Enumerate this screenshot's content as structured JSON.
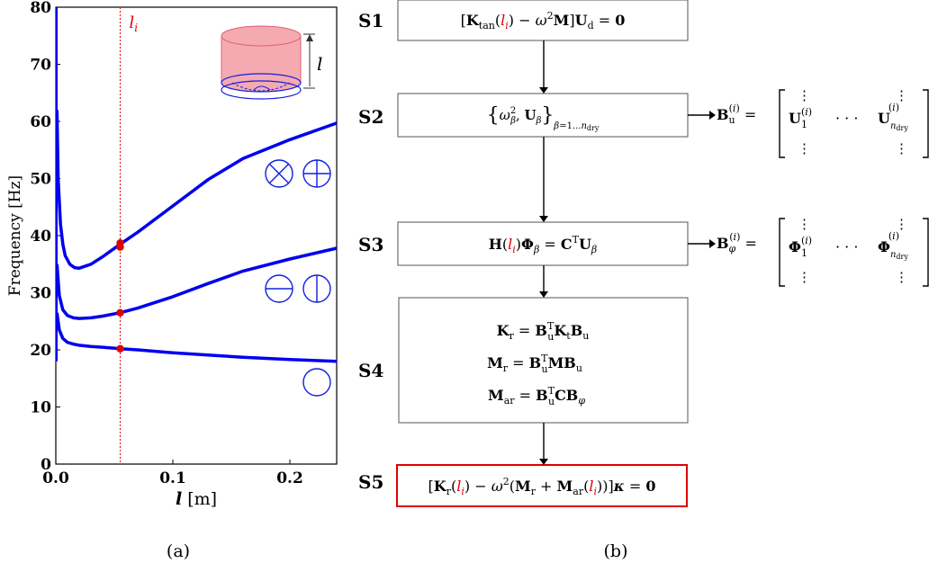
{
  "panel_a": {
    "caption": "(a)",
    "chart_data": {
      "type": "line",
      "ylabel": "Frequency [Hz]",
      "xlabel_var": "l",
      "xlabel_unit": "[m]",
      "xlim": [
        0,
        0.24
      ],
      "ylim": [
        0,
        80
      ],
      "xticks": [
        0.0,
        0.1,
        0.2
      ],
      "xtick_labels": [
        "0.0",
        "0.1",
        "0.2"
      ],
      "yticks": [
        0,
        10,
        20,
        30,
        40,
        50,
        60,
        70,
        80
      ],
      "ytick_labels": [
        "0",
        "10",
        "20",
        "30",
        "40",
        "50",
        "60",
        "70",
        "80"
      ],
      "series_color": "#0000ee",
      "marker_color": "#e00000",
      "vline_label": "l_i",
      "vline_x": 0.055,
      "series": [
        {
          "x": [
            0.001,
            0.003,
            0.006,
            0.01,
            0.015,
            0.02,
            0.03,
            0.04,
            0.055,
            0.07,
            0.1,
            0.13,
            0.16,
            0.2,
            0.24
          ],
          "y": [
            26.5,
            23.5,
            22.0,
            21.3,
            21.0,
            20.8,
            20.6,
            20.45,
            20.2,
            20.0,
            19.5,
            19.1,
            18.7,
            18.3,
            18.0
          ]
        },
        {
          "x": [
            0.001,
            0.003,
            0.006,
            0.01,
            0.015,
            0.02,
            0.03,
            0.04,
            0.055,
            0.07,
            0.1,
            0.13,
            0.16,
            0.2,
            0.24
          ],
          "y": [
            35.0,
            29.5,
            27.0,
            26.0,
            25.6,
            25.5,
            25.6,
            25.9,
            26.5,
            27.3,
            29.3,
            31.6,
            33.8,
            35.9,
            37.8
          ]
        },
        {
          "x": [
            0.001,
            0.002,
            0.004,
            0.006,
            0.008,
            0.012,
            0.016,
            0.02,
            0.03,
            0.04,
            0.055,
            0.07,
            0.1,
            0.13,
            0.16,
            0.2,
            0.24
          ],
          "y": [
            62,
            50.0,
            42.0,
            38.5,
            36.5,
            35.0,
            34.4,
            34.3,
            35.0,
            36.3,
            38.5,
            40.6,
            45.2,
            49.8,
            53.5,
            56.8,
            59.7
          ]
        }
      ],
      "markers": [
        {
          "x": 0.055,
          "y": 20.2
        },
        {
          "x": 0.055,
          "y": 26.5
        },
        {
          "x": 0.055,
          "y": 38.0
        },
        {
          "x": 0.055,
          "y": 38.7
        }
      ],
      "inset_label": "l"
    }
  },
  "panel_b": {
    "caption": "(b)",
    "steps": [
      {
        "label": "S1"
      },
      {
        "label": "S2"
      },
      {
        "label": "S3"
      },
      {
        "label": "S4"
      },
      {
        "label": "S5"
      }
    ],
    "highlight_color": "#e00000"
  }
}
